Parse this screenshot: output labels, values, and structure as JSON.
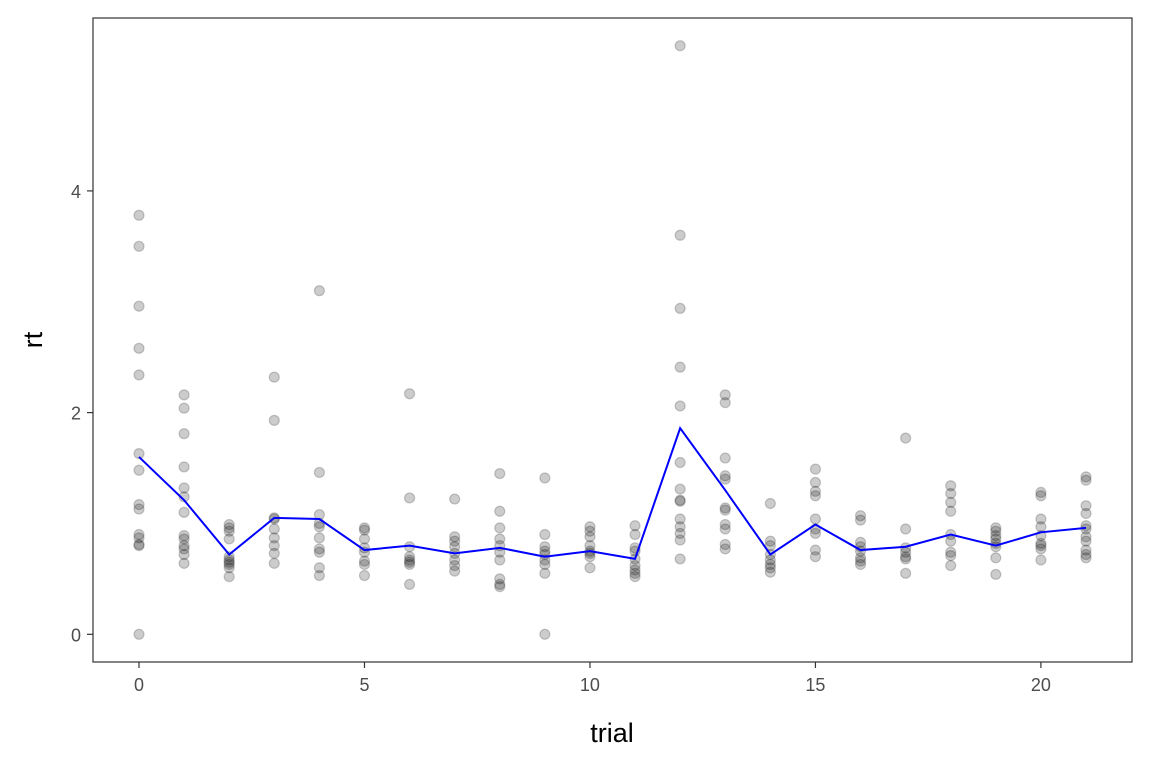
{
  "chart_data": {
    "type": "scatter",
    "title": "",
    "xlabel": "trial",
    "ylabel": "rt",
    "xlim": [
      -1.02,
      22.02
    ],
    "ylim": [
      -0.25,
      5.56
    ],
    "xticks": [
      0,
      5,
      10,
      15,
      20
    ],
    "xtick_labels": [
      "0",
      "5",
      "10",
      "15",
      "20"
    ],
    "yticks": [
      0,
      2,
      4
    ],
    "ytick_labels": [
      "0",
      "2",
      "4"
    ],
    "grid": false,
    "legend": "none",
    "colors": {
      "points": "#000000",
      "mean_line": "#0000ff",
      "panel_border": "#333333"
    },
    "points": [
      {
        "trial": 0,
        "rt": [
          3.78,
          3.5,
          2.96,
          2.58,
          2.34,
          1.63,
          1.48,
          1.17,
          1.13,
          0.9,
          0.87,
          0.81,
          0.8,
          0.0
        ]
      },
      {
        "trial": 1,
        "rt": [
          2.16,
          2.04,
          1.81,
          1.51,
          1.32,
          1.24,
          1.1,
          0.89,
          0.86,
          0.8,
          0.77,
          0.72,
          0.64
        ]
      },
      {
        "trial": 2,
        "rt": [
          0.99,
          0.96,
          0.93,
          0.86,
          0.7,
          0.67,
          0.65,
          0.63,
          0.6,
          0.52
        ]
      },
      {
        "trial": 3,
        "rt": [
          2.32,
          1.93,
          1.05,
          1.04,
          0.95,
          0.87,
          0.8,
          0.73,
          0.64
        ]
      },
      {
        "trial": 4,
        "rt": [
          3.1,
          1.46,
          1.08,
          1.0,
          0.97,
          0.87,
          0.77,
          0.74,
          0.6,
          0.53
        ]
      },
      {
        "trial": 5,
        "rt": [
          0.96,
          0.94,
          0.86,
          0.78,
          0.74,
          0.66,
          0.63,
          0.53
        ]
      },
      {
        "trial": 6,
        "rt": [
          2.17,
          1.23,
          0.79,
          0.7,
          0.67,
          0.65,
          0.63,
          0.45
        ]
      },
      {
        "trial": 7,
        "rt": [
          1.22,
          0.88,
          0.84,
          0.79,
          0.73,
          0.67,
          0.62,
          0.57
        ]
      },
      {
        "trial": 8,
        "rt": [
          1.45,
          1.11,
          0.96,
          0.86,
          0.8,
          0.74,
          0.67,
          0.5,
          0.45,
          0.43
        ]
      },
      {
        "trial": 9,
        "rt": [
          1.41,
          0.9,
          0.79,
          0.75,
          0.72,
          0.67,
          0.63,
          0.55,
          0.0
        ]
      },
      {
        "trial": 10,
        "rt": [
          0.97,
          0.93,
          0.88,
          0.8,
          0.75,
          0.73,
          0.7,
          0.6
        ]
      },
      {
        "trial": 11,
        "rt": [
          0.98,
          0.9,
          0.78,
          0.75,
          0.68,
          0.62,
          0.58,
          0.55,
          0.52
        ]
      },
      {
        "trial": 12,
        "rt": [
          5.31,
          3.6,
          2.94,
          2.41,
          2.06,
          1.55,
          1.31,
          1.21,
          1.2,
          1.04,
          0.97,
          0.91,
          0.85,
          0.68
        ]
      },
      {
        "trial": 13,
        "rt": [
          2.16,
          2.09,
          1.59,
          1.43,
          1.4,
          1.14,
          1.12,
          0.99,
          0.95,
          0.81,
          0.77
        ]
      },
      {
        "trial": 14,
        "rt": [
          1.18,
          0.84,
          0.8,
          0.72,
          0.67,
          0.63,
          0.6,
          0.56
        ]
      },
      {
        "trial": 15,
        "rt": [
          1.49,
          1.37,
          1.29,
          1.25,
          1.04,
          0.95,
          0.91,
          0.76,
          0.7
        ]
      },
      {
        "trial": 16,
        "rt": [
          1.07,
          1.03,
          0.83,
          0.79,
          0.75,
          0.69,
          0.66,
          0.63
        ]
      },
      {
        "trial": 17,
        "rt": [
          1.77,
          0.95,
          0.78,
          0.74,
          0.7,
          0.68,
          0.55
        ]
      },
      {
        "trial": 18,
        "rt": [
          1.34,
          1.27,
          1.19,
          1.11,
          0.9,
          0.84,
          0.74,
          0.71,
          0.62
        ]
      },
      {
        "trial": 19,
        "rt": [
          0.96,
          0.93,
          0.89,
          0.86,
          0.82,
          0.79,
          0.69,
          0.54
        ]
      },
      {
        "trial": 20,
        "rt": [
          1.28,
          1.25,
          1.04,
          0.97,
          0.89,
          0.82,
          0.8,
          0.77,
          0.67
        ]
      },
      {
        "trial": 21,
        "rt": [
          1.42,
          1.39,
          1.16,
          1.09,
          0.98,
          0.95,
          0.88,
          0.84,
          0.76,
          0.72,
          0.69
        ]
      }
    ],
    "mean_line": {
      "x": [
        0,
        1,
        2,
        3,
        4,
        5,
        6,
        7,
        8,
        9,
        10,
        11,
        12,
        13,
        14,
        15,
        16,
        17,
        18,
        19,
        20,
        21
      ],
      "y": [
        1.6,
        1.21,
        0.72,
        1.05,
        1.04,
        0.76,
        0.8,
        0.73,
        0.78,
        0.7,
        0.75,
        0.68,
        1.86,
        1.3,
        0.72,
        0.99,
        0.76,
        0.79,
        0.9,
        0.8,
        0.92,
        0.96
      ]
    }
  }
}
